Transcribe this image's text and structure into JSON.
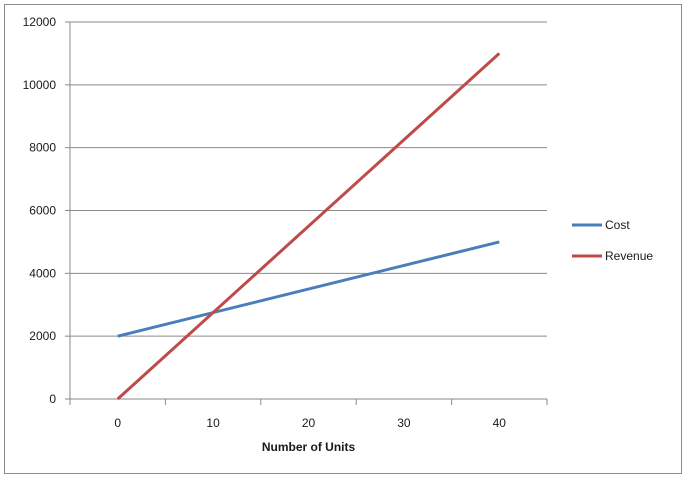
{
  "chart_data": {
    "type": "line",
    "title": "",
    "xlabel": "Number of Units",
    "ylabel": "",
    "x": [
      0,
      40
    ],
    "x_ticks": [
      "0",
      "10",
      "20",
      "30",
      "40"
    ],
    "y_ticks": [
      "0",
      "2000",
      "4000",
      "6000",
      "8000",
      "10000",
      "12000"
    ],
    "xlim": [
      -5,
      45
    ],
    "ylim": [
      0,
      12000
    ],
    "grid": "horizontal",
    "legend_position": "right",
    "series": [
      {
        "name": "Cost",
        "color": "#4a7ebb",
        "values": [
          2000,
          5000
        ]
      },
      {
        "name": "Revenue",
        "color": "#be4b48",
        "values": [
          0,
          11000
        ]
      }
    ]
  }
}
